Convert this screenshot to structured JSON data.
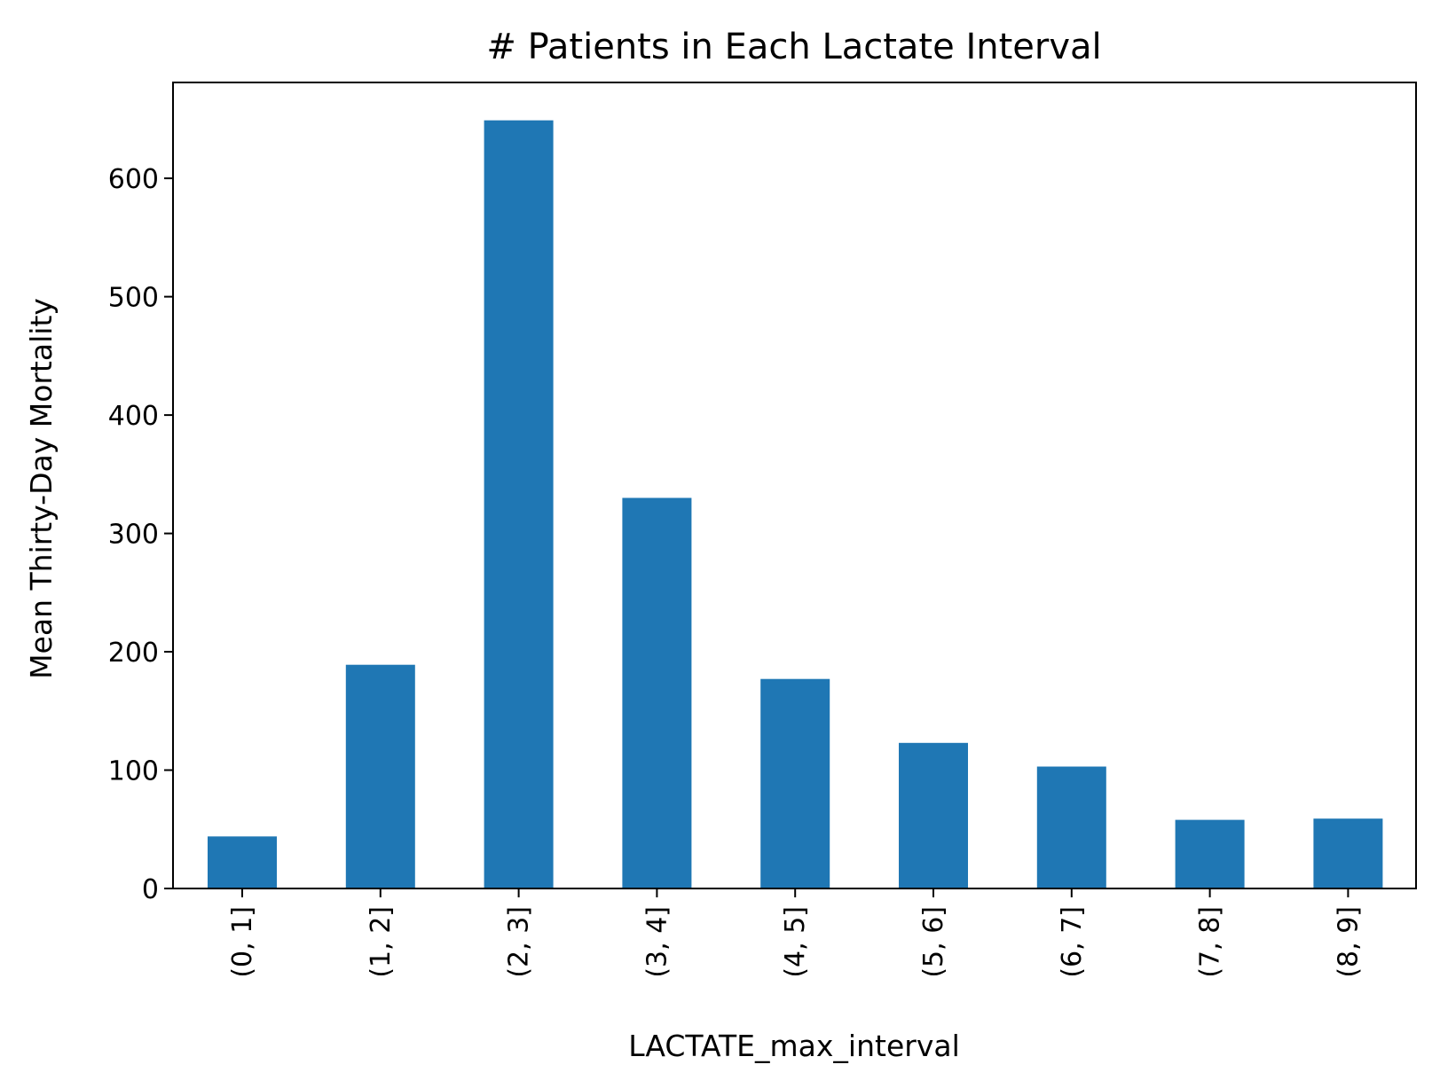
{
  "chart_data": {
    "type": "bar",
    "title": "# Patients in Each Lactate Interval",
    "xlabel": "LACTATE_max_interval",
    "ylabel": "Mean Thirty-Day Mortality",
    "categories": [
      "(0, 1]",
      "(1, 2]",
      "(2, 3]",
      "(3, 4]",
      "(4, 5]",
      "(5, 6]",
      "(6, 7]",
      "(7, 8]",
      "(8, 9]"
    ],
    "values": [
      44,
      189,
      649,
      330,
      177,
      123,
      103,
      58,
      59
    ],
    "ylim": [
      0,
      681
    ],
    "yticks": [
      0,
      100,
      200,
      300,
      400,
      500,
      600
    ],
    "grid": false,
    "legend": "none",
    "bar_color": "#1f77b4"
  }
}
